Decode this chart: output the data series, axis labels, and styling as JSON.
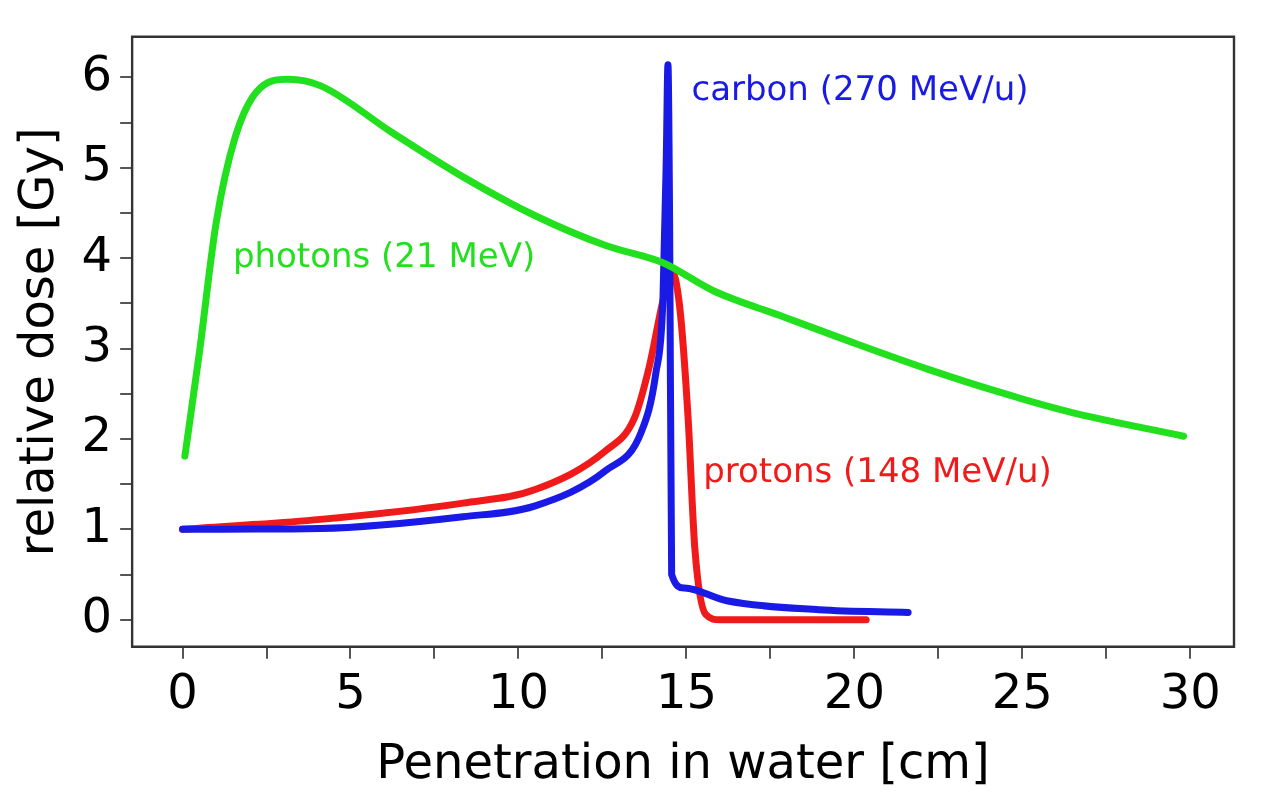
{
  "chart_data": {
    "type": "line",
    "xlabel": "Penetration in water [cm]",
    "ylabel": "relative dose [Gy]",
    "xlim": [
      -1.5,
      31.3
    ],
    "ylim": [
      -0.3,
      6.45
    ],
    "xticks": [
      0,
      {
        "value": 2.5,
        "label": null
      },
      5,
      {
        "value": 7.5,
        "label": null
      },
      10,
      {
        "value": 12.5,
        "label": null
      },
      15,
      {
        "value": 17.5,
        "label": null
      },
      20,
      {
        "value": 22.5,
        "label": null
      },
      25,
      {
        "value": 27.5,
        "label": null
      },
      30
    ],
    "yticks": [
      0,
      {
        "value": 0.5,
        "label": null
      },
      1,
      {
        "value": 1.5,
        "label": null
      },
      2,
      {
        "value": 2.5,
        "label": null
      },
      3,
      {
        "value": 3.5,
        "label": null
      },
      4,
      {
        "value": 4.5,
        "label": null
      },
      5,
      {
        "value": 5.5,
        "label": null
      },
      6
    ],
    "grid": false,
    "legend": false,
    "marker": "none",
    "line_style": "solid",
    "series": [
      {
        "name": "photons (21 MeV)",
        "color": "#22e01e",
        "x": [
          0.07,
          0.5,
          1.0,
          1.56,
          2.2,
          3.15,
          4.1,
          6.2,
          8.35,
          10.5,
          12.6,
          14.3,
          15.8,
          17.9,
          20.0,
          22.2,
          24.3,
          26.4,
          29.8
        ],
        "values": [
          1.81,
          2.95,
          4.39,
          5.33,
          5.84,
          5.98,
          5.91,
          5.4,
          4.9,
          4.47,
          4.14,
          3.95,
          3.64,
          3.35,
          3.06,
          2.77,
          2.52,
          2.3,
          2.03
        ]
      },
      {
        "name": "carbon (270 MeV/u)",
        "color": "#1a1ae6",
        "x": [
          0,
          4.1,
          8.35,
          10.5,
          12.6,
          13.66,
          14.09,
          14.3,
          14.4,
          14.45,
          14.5,
          14.56,
          14.94,
          16.2,
          18.95,
          21.6
        ],
        "values": [
          1.0,
          1.01,
          1.14,
          1.26,
          1.65,
          2.08,
          2.73,
          3.53,
          5.11,
          6.14,
          4.39,
          0.5,
          0.35,
          0.21,
          0.11,
          0.08
        ]
      },
      {
        "name": "protons (148 MeV/u)",
        "color": "#f01a1a",
        "x": [
          0,
          4.1,
          8.35,
          10.5,
          12.6,
          13.45,
          13.9,
          14.3,
          14.55,
          14.8,
          15.05,
          15.25,
          15.57,
          16.0,
          20.35
        ],
        "values": [
          1.0,
          1.11,
          1.29,
          1.44,
          1.87,
          2.23,
          2.81,
          3.53,
          3.87,
          3.46,
          2.23,
          0.79,
          0.06,
          0.0,
          0.0
        ]
      }
    ]
  }
}
